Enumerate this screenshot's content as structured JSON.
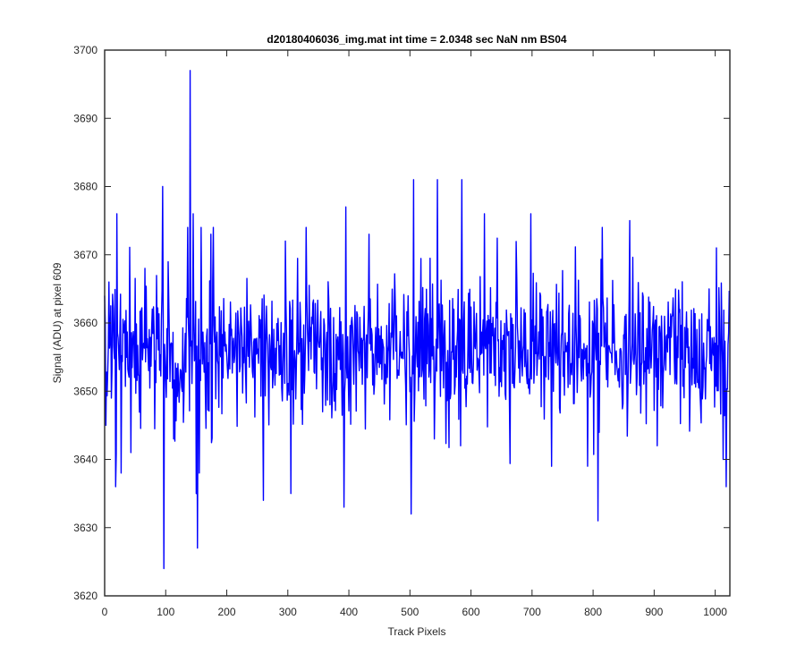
{
  "chart_data": {
    "type": "line",
    "title": "d20180406036_img.mat int time = 2.0348 sec  NaN nm BS04",
    "xlabel": "Track Pixels",
    "ylabel": "Signal (ADU) at pixel 609",
    "xlim": [
      0,
      1024
    ],
    "ylim": [
      3620,
      3700
    ],
    "xticks": [
      0,
      100,
      200,
      300,
      400,
      500,
      600,
      700,
      800,
      900,
      1000
    ],
    "yticks": [
      3620,
      3630,
      3640,
      3650,
      3660,
      3670,
      3680,
      3690,
      3700
    ],
    "grid": false,
    "box": true,
    "series": [
      {
        "color": "#0000ff",
        "noise_mean": 3656,
        "noise_sd": 5.2,
        "n_points": 1024,
        "points": [
          {
            "x": 2,
            "y": 3645
          },
          {
            "x": 7,
            "y": 3666
          },
          {
            "x": 18,
            "y": 3636
          },
          {
            "x": 20,
            "y": 3676
          },
          {
            "x": 27,
            "y": 3638
          },
          {
            "x": 43,
            "y": 3641
          },
          {
            "x": 66,
            "y": 3668
          },
          {
            "x": 95,
            "y": 3680
          },
          {
            "x": 97,
            "y": 3624
          },
          {
            "x": 113,
            "y": 3643
          },
          {
            "x": 136,
            "y": 3674
          },
          {
            "x": 140,
            "y": 3697
          },
          {
            "x": 145,
            "y": 3676
          },
          {
            "x": 150,
            "y": 3635
          },
          {
            "x": 152,
            "y": 3627
          },
          {
            "x": 155,
            "y": 3638
          },
          {
            "x": 158,
            "y": 3674
          },
          {
            "x": 174,
            "y": 3673
          },
          {
            "x": 260,
            "y": 3634
          },
          {
            "x": 296,
            "y": 3672
          },
          {
            "x": 305,
            "y": 3635
          },
          {
            "x": 330,
            "y": 3674
          },
          {
            "x": 392,
            "y": 3633
          },
          {
            "x": 395,
            "y": 3677
          },
          {
            "x": 433,
            "y": 3673
          },
          {
            "x": 502,
            "y": 3632
          },
          {
            "x": 506,
            "y": 3681
          },
          {
            "x": 540,
            "y": 3643
          },
          {
            "x": 545,
            "y": 3681
          },
          {
            "x": 583,
            "y": 3642
          },
          {
            "x": 585,
            "y": 3681
          },
          {
            "x": 622,
            "y": 3676
          },
          {
            "x": 698,
            "y": 3676
          },
          {
            "x": 791,
            "y": 3639
          },
          {
            "x": 808,
            "y": 3631
          },
          {
            "x": 815,
            "y": 3674
          },
          {
            "x": 860,
            "y": 3675
          },
          {
            "x": 1002,
            "y": 3671
          },
          {
            "x": 1013,
            "y": 3640
          },
          {
            "x": 1018,
            "y": 3636
          }
        ]
      }
    ]
  }
}
